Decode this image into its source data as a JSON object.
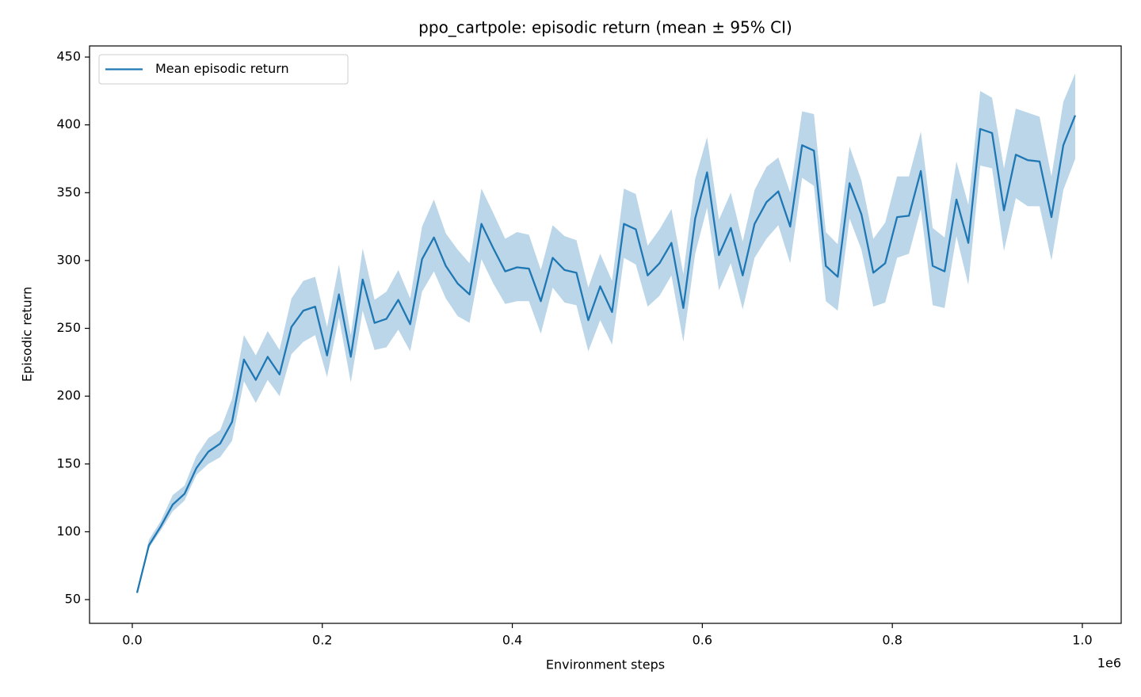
{
  "chart_data": {
    "type": "line",
    "title": "ppo_cartpole: episodic return (mean ± 95% CI)",
    "xlabel": "Environment steps",
    "ylabel": "Episodic return",
    "x_offset_label": "1e6",
    "x": [
      5000,
      17500,
      30000,
      42500,
      55000,
      67500,
      80000,
      92500,
      105000,
      117500,
      130000,
      142500,
      155000,
      167500,
      180000,
      192500,
      205000,
      217500,
      230000,
      242500,
      255000,
      267500,
      280000,
      292500,
      305000,
      317500,
      330000,
      342500,
      355000,
      367500,
      380000,
      392500,
      405000,
      417500,
      430000,
      442500,
      455000,
      467500,
      480000,
      492500,
      505000,
      517500,
      530000,
      542500,
      555000,
      567500,
      580000,
      592500,
      605000,
      617500,
      630000,
      642500,
      655000,
      667500,
      680000,
      692500,
      705000,
      717500,
      730000,
      742500,
      755000,
      767500,
      780000,
      792500,
      805000,
      817500,
      830000,
      842500,
      855000,
      867500,
      880000,
      892500,
      905000,
      917500,
      930000,
      942500,
      955000,
      967500,
      980000,
      992500
    ],
    "series": [
      {
        "name": "Mean episodic return",
        "color": "#1f77b4",
        "band_opacity": 0.3,
        "values": [
          55,
          90,
          104,
          120,
          128,
          147,
          159,
          165,
          181,
          227,
          212,
          229,
          216,
          251,
          263,
          266,
          230,
          275,
          229,
          286,
          254,
          257,
          271,
          253,
          301,
          317,
          296,
          283,
          275,
          327,
          309,
          292,
          295,
          294,
          270,
          302,
          293,
          291,
          256,
          281,
          262,
          327,
          323,
          289,
          298,
          313,
          265,
          331,
          365,
          304,
          324,
          289,
          327,
          343,
          351,
          325,
          385,
          381,
          296,
          288,
          357,
          334,
          291,
          298,
          332,
          333,
          366,
          296,
          292,
          345,
          313,
          397,
          394,
          337,
          378,
          374,
          373,
          332,
          385,
          407
        ],
        "upper": [
          55,
          94,
          108,
          127,
          134,
          156,
          169,
          175,
          198,
          245,
          230,
          248,
          234,
          272,
          285,
          288,
          251,
          297,
          245,
          309,
          271,
          277,
          293,
          272,
          325,
          345,
          320,
          308,
          298,
          353,
          335,
          316,
          321,
          319,
          293,
          326,
          318,
          315,
          280,
          305,
          285,
          353,
          349,
          311,
          323,
          338,
          290,
          360,
          391,
          330,
          350,
          314,
          352,
          369,
          376,
          350,
          410,
          408,
          321,
          312,
          384,
          359,
          316,
          328,
          362,
          362,
          395,
          324,
          317,
          373,
          341,
          425,
          420,
          368,
          412,
          409,
          406,
          362,
          417,
          438
        ],
        "lower": [
          55,
          88,
          101,
          115,
          123,
          142,
          150,
          155,
          167,
          211,
          195,
          212,
          200,
          231,
          240,
          245,
          214,
          258,
          210,
          263,
          234,
          236,
          249,
          233,
          277,
          292,
          272,
          259,
          254,
          301,
          283,
          268,
          270,
          270,
          246,
          280,
          269,
          267,
          233,
          256,
          238,
          302,
          297,
          266,
          274,
          289,
          240,
          305,
          339,
          278,
          298,
          264,
          302,
          316,
          326,
          298,
          361,
          355,
          270,
          263,
          331,
          308,
          266,
          269,
          302,
          305,
          338,
          267,
          265,
          318,
          282,
          370,
          368,
          307,
          346,
          340,
          340,
          300,
          352,
          375
        ]
      }
    ],
    "xlim": [
      -45000,
      1040900
    ],
    "ylim": [
      32.5,
      458.2
    ],
    "xticks": [
      {
        "value": 0,
        "label": "0.0"
      },
      {
        "value": 200000,
        "label": "0.2"
      },
      {
        "value": 400000,
        "label": "0.4"
      },
      {
        "value": 600000,
        "label": "0.6"
      },
      {
        "value": 800000,
        "label": "0.8"
      },
      {
        "value": 1000000,
        "label": "1.0"
      }
    ],
    "yticks": [
      50,
      100,
      150,
      200,
      250,
      300,
      350,
      400,
      450
    ],
    "legend": "upper left",
    "grid": false
  }
}
